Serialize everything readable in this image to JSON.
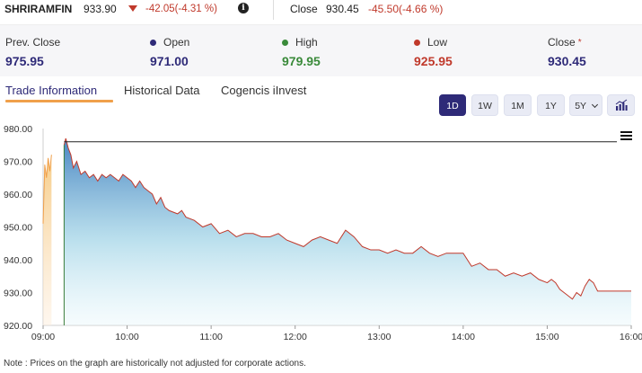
{
  "header": {
    "symbol": "SHRIRAMFIN",
    "price": "933.90",
    "change": "-42.05(-4.31 %)",
    "info_glyph": "i",
    "close_label": "Close",
    "close_price": "930.45",
    "close_change": "-45.50(-4.66 %)"
  },
  "stats": [
    {
      "label": "Prev. Close",
      "value": "975.95",
      "dot": "",
      "color": "#2e2a78"
    },
    {
      "label": "Open",
      "value": "971.00",
      "dot": "#2e2a78",
      "color": "#2e2a78"
    },
    {
      "label": "High",
      "value": "979.95",
      "dot": "#3a8a3a",
      "color": "#3a8a3a"
    },
    {
      "label": "Low",
      "value": "925.95",
      "dot": "#c0392b",
      "color": "#c0392b"
    },
    {
      "label": "Close",
      "value": "930.45",
      "dot": "",
      "color": "#2e2a78",
      "star": "*"
    }
  ],
  "tabs": [
    "Trade Information",
    "Historical Data",
    "Cogencis iInvest"
  ],
  "ranges": [
    "1D",
    "1W",
    "1M",
    "1Y",
    "5Y"
  ],
  "note": "Note : Prices on the graph are historically not adjusted for corporate actions.",
  "colors": {
    "accent": "#2e2a78",
    "down": "#c0392b",
    "up": "#3a8a3a",
    "tab_underline": "#f0a04b"
  },
  "chart_data": {
    "type": "area",
    "ylim": [
      920,
      980
    ],
    "yticks": [
      "920.00",
      "930.00",
      "940.00",
      "950.00",
      "960.00",
      "970.00",
      "980.00"
    ],
    "xticks": [
      "09:00",
      "10:00",
      "11:00",
      "12:00",
      "13:00",
      "14:00",
      "15:00",
      "16:00"
    ],
    "xlim": [
      9.0,
      16.0
    ],
    "reference_line": 975.95,
    "premarket": {
      "x": [
        9.0,
        9.02,
        9.04,
        9.06,
        9.08,
        9.1
      ],
      "y": [
        951,
        969,
        965,
        971,
        967,
        972
      ]
    },
    "series": [
      {
        "x": [
          9.25,
          9.27,
          9.3,
          9.33,
          9.36,
          9.4,
          9.45,
          9.5,
          9.55,
          9.6,
          9.65,
          9.7,
          9.75,
          9.8,
          9.85,
          9.9,
          9.95,
          10.0,
          10.05,
          10.1,
          10.15,
          10.2,
          10.25,
          10.3,
          10.35,
          10.4,
          10.45,
          10.5,
          10.6,
          10.65,
          10.7,
          10.8,
          10.9,
          11.0,
          11.1,
          11.2,
          11.3,
          11.4,
          11.5,
          11.6,
          11.7,
          11.8,
          11.9,
          12.0,
          12.1,
          12.2,
          12.3,
          12.4,
          12.5,
          12.6,
          12.7,
          12.8,
          12.9,
          13.0,
          13.1,
          13.2,
          13.3,
          13.4,
          13.5,
          13.6,
          13.7,
          13.8,
          13.9,
          14.0,
          14.1,
          14.2,
          14.3,
          14.4,
          14.5,
          14.6,
          14.7,
          14.8,
          14.9,
          15.0,
          15.05,
          15.1,
          15.15,
          15.2,
          15.25,
          15.3,
          15.35,
          15.4,
          15.45,
          15.5,
          15.55,
          15.6,
          15.7,
          15.8,
          15.9,
          16.0
        ],
        "y": [
          975,
          977,
          974,
          972,
          968,
          970,
          966,
          967,
          965,
          966,
          964,
          966,
          965,
          966,
          965,
          964,
          966,
          965,
          964,
          962,
          964,
          962,
          961,
          960,
          957,
          959,
          956,
          955,
          954,
          955,
          953,
          952,
          950,
          951,
          948,
          949,
          947,
          948,
          948,
          947,
          947,
          948,
          946,
          945,
          944,
          946,
          947,
          946,
          945,
          949,
          947,
          944,
          943,
          943,
          942,
          943,
          942,
          942,
          944,
          942,
          941,
          942,
          942,
          942,
          938,
          939,
          937,
          937,
          935,
          936,
          935,
          936,
          934,
          933,
          934,
          933,
          931,
          930,
          929,
          928,
          930,
          929,
          932,
          934,
          933,
          930.45,
          930.45,
          930.45,
          930.45,
          930.45
        ]
      }
    ]
  }
}
